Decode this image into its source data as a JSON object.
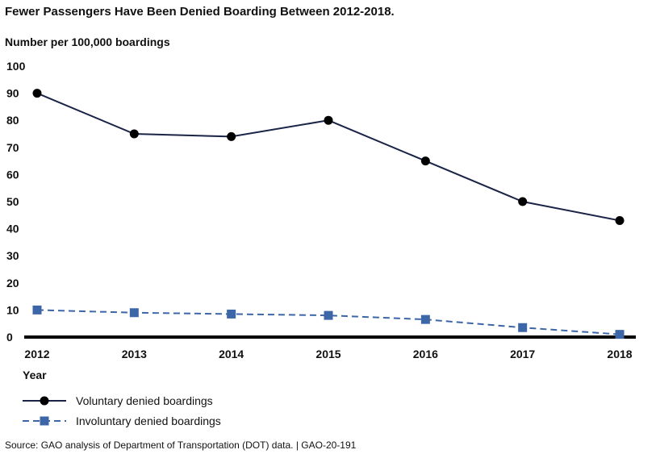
{
  "chart_data": {
    "type": "line",
    "title": "Fewer Passengers Have Been Denied Boarding Between 2012-2018.",
    "ylabel": "Number per 100,000 boardings",
    "xlabel": "Year",
    "x": [
      "2012",
      "2013",
      "2014",
      "2015",
      "2016",
      "2017",
      "2018"
    ],
    "ylim": [
      0,
      100
    ],
    "yticks": [
      "0",
      "10",
      "20",
      "30",
      "40",
      "50",
      "60",
      "70",
      "80",
      "90",
      "100"
    ],
    "grid": false,
    "legend_placement": "bottom-left",
    "series": [
      {
        "name": "Voluntary denied boardings",
        "values": [
          90,
          75,
          74,
          80,
          65,
          50,
          43
        ],
        "color": "#1a2447",
        "marker": "circle",
        "dash": false
      },
      {
        "name": "Involuntary denied boardings",
        "values": [
          10,
          9,
          8.5,
          8,
          6.5,
          3.5,
          1
        ],
        "color": "#3d66a8",
        "marker": "square",
        "dash": true
      }
    ],
    "source": "Source: GAO analysis of Department of Transportation (DOT) data. | GAO-20-191"
  }
}
